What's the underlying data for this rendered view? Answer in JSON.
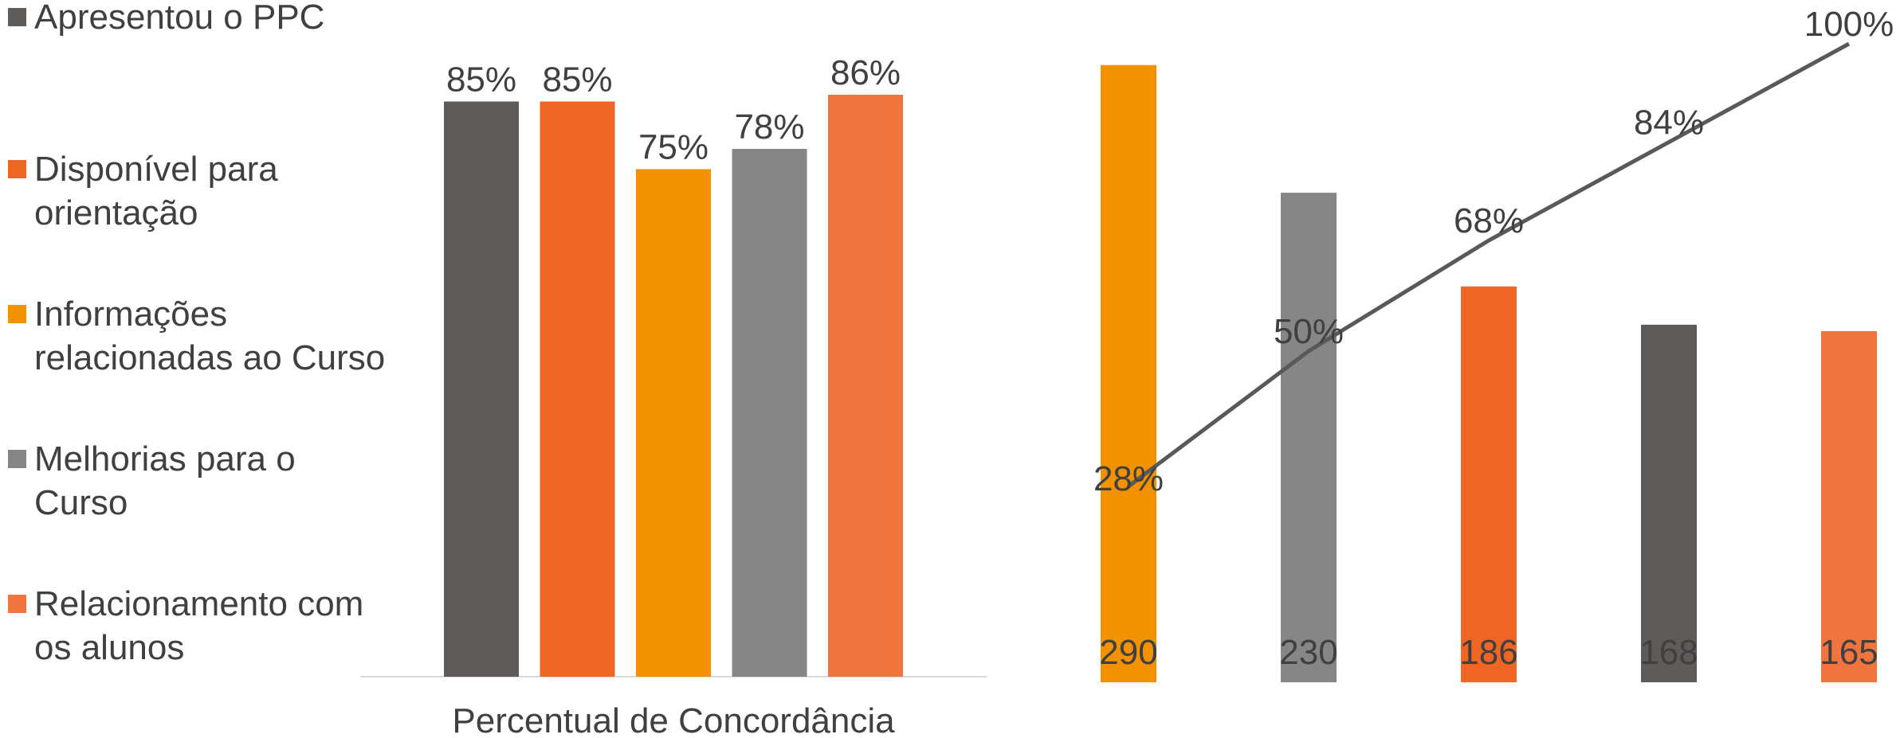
{
  "legend": {
    "items": [
      {
        "label": "Apresentou  o PPC",
        "color": "#5f5b59"
      },
      {
        "label": "Disponível para\norientação",
        "color": "#ee6524"
      },
      {
        "label": "Informações\nrelacionadas ao Curso",
        "color": "#f29200"
      },
      {
        "label": "Melhorias para o\nCurso",
        "color": "#868686"
      },
      {
        "label": "Relacionamento com\nos alunos",
        "color": "#ef743d"
      }
    ]
  },
  "chart_data": [
    {
      "type": "bar",
      "xlabel": "Percentual de Concordância",
      "categories": [
        "Percentual de Concordância"
      ],
      "ylim": [
        0,
        1
      ],
      "grid": false,
      "legend_position": "left",
      "series": [
        {
          "name": "Apresentou  o PPC",
          "values": [
            0.85
          ],
          "label": "85%",
          "color": "#5f5b59"
        },
        {
          "name": "Disponível para orientação",
          "values": [
            0.85
          ],
          "label": "85%",
          "color": "#ee6524"
        },
        {
          "name": "Informações relacionadas ao Curso",
          "values": [
            0.75
          ],
          "label": "75%",
          "color": "#f29200"
        },
        {
          "name": "Melhorias para o Curso",
          "values": [
            0.78
          ],
          "label": "78%",
          "color": "#868686"
        },
        {
          "name": "Relacionamento com os alunos",
          "values": [
            0.86
          ],
          "label": "86%",
          "color": "#ef743d"
        }
      ]
    },
    {
      "type": "bar",
      "subtype": "pareto",
      "ylim": [
        0,
        300
      ],
      "y2lim": [
        0,
        1
      ],
      "grid": false,
      "bars": {
        "values": [
          290,
          230,
          186,
          168,
          165
        ],
        "labels": [
          "290",
          "230",
          "186",
          "168",
          "165"
        ],
        "colors": [
          "#f29200",
          "#868686",
          "#ee6524",
          "#5f5b59",
          "#ef743d"
        ]
      },
      "line": {
        "values": [
          0.28,
          0.5,
          0.68,
          0.84,
          1.0
        ],
        "labels": [
          "28%",
          "50%",
          "68%",
          "84%",
          "100%"
        ],
        "color": "#595959"
      }
    }
  ]
}
